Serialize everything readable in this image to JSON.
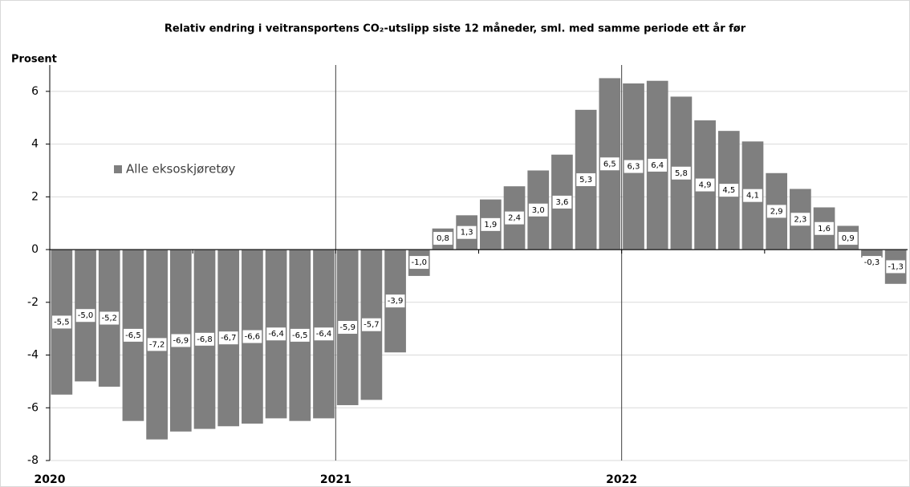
{
  "chart_data": {
    "type": "bar",
    "title": "Relativ endring i veitransportens CO₂-utslipp siste 12 måneder, sml. med samme periode ett år før",
    "y_label": "Prosent",
    "categories": [
      "2020",
      null,
      null,
      null,
      null,
      null,
      null,
      null,
      null,
      null,
      null,
      null,
      "2021",
      null,
      null,
      null,
      null,
      null,
      null,
      null,
      null,
      null,
      null,
      null,
      "2022",
      null,
      null,
      null,
      null,
      null,
      null,
      null,
      null,
      null,
      null,
      null
    ],
    "series": [
      {
        "name": "Alle eksoskjøretøy",
        "color": "#7f7f7f",
        "values": [
          -5.5,
          -5.0,
          -5.2,
          -6.5,
          -7.2,
          -6.9,
          -6.8,
          -6.7,
          -6.6,
          -6.4,
          -6.5,
          -6.4,
          -5.9,
          -5.7,
          -3.9,
          -1.0,
          0.8,
          1.3,
          1.9,
          2.4,
          3.0,
          3.6,
          5.3,
          6.5,
          6.3,
          6.4,
          5.8,
          4.9,
          4.5,
          4.1,
          2.9,
          2.3,
          1.6,
          0.9,
          -0.3,
          -1.3
        ],
        "value_labels": [
          "-5,5",
          "-5,0",
          "-5,2",
          "-6,5",
          "-7,2",
          "-6,9",
          "-6,8",
          "-6,7",
          "-6,6",
          "-6,4",
          "-6,5",
          "-6,4",
          "-5,9",
          "-5,7",
          "-3,9",
          "-1,0",
          "0,8",
          "1,3",
          "1,9",
          "2,4",
          "3,0",
          "3,6",
          "5,3",
          "6,5",
          "6,3",
          "6,4",
          "5,8",
          "4,9",
          "4,5",
          "4,1",
          "2,9",
          "2,3",
          "1,6",
          "0,9",
          "-0,3",
          "-1,3"
        ]
      }
    ],
    "ylim": [
      -8,
      7
    ],
    "yticks": [
      -8,
      -6,
      -4,
      -2,
      0,
      2,
      4,
      6
    ],
    "grid": true,
    "legend": "upper left"
  }
}
